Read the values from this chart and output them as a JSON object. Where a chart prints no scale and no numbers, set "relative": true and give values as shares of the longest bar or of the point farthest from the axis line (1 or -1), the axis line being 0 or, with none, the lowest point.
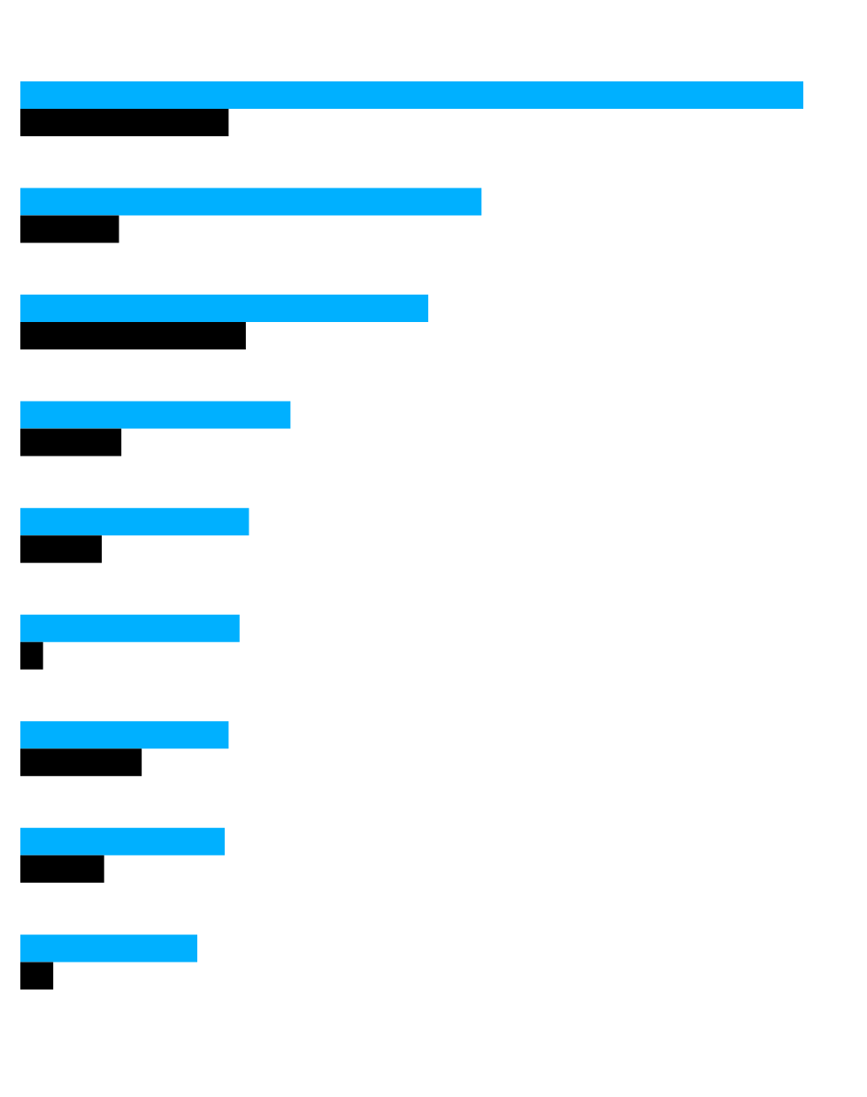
{
  "chart_data": {
    "type": "bar",
    "orientation": "horizontal",
    "relative": true,
    "grid": false,
    "categories": [
      null,
      null,
      null,
      null,
      null,
      null,
      null,
      null,
      null
    ],
    "series": [
      {
        "color": "#00b0ff",
        "values": [
          1,
          0.589,
          0.521,
          0.345,
          0.292,
          0.28,
          0.266,
          0.261,
          0.226
        ]
      },
      {
        "color": "#000000",
        "values": [
          0.266,
          0.126,
          0.288,
          0.129,
          0.104,
          0.029,
          0.155,
          0.107,
          0.042
        ]
      }
    ]
  }
}
